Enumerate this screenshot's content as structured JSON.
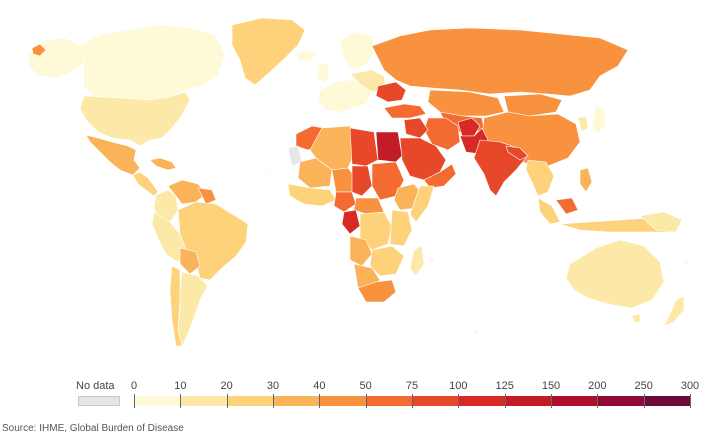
{
  "legend": {
    "no_data_label": "No data",
    "no_data_color": "#e6e6e6",
    "bins": [
      {
        "from": "0",
        "to": "10",
        "color": "#fef9d6"
      },
      {
        "from": "10",
        "to": "20",
        "color": "#fde9a7"
      },
      {
        "from": "20",
        "to": "30",
        "color": "#fdd27a"
      },
      {
        "from": "30",
        "to": "40",
        "color": "#fbb35a"
      },
      {
        "from": "40",
        "to": "50",
        "color": "#f8923f"
      },
      {
        "from": "50",
        "to": "75",
        "color": "#f36b31"
      },
      {
        "from": "75",
        "to": "100",
        "color": "#e8482a"
      },
      {
        "from": "100",
        "to": "125",
        "color": "#d82a24"
      },
      {
        "from": "125",
        "to": "150",
        "color": "#c41c26"
      },
      {
        "from": "150",
        "to": "200",
        "color": "#ad0f2d"
      },
      {
        "from": "200",
        "to": "250",
        "color": "#900a36"
      },
      {
        "from": "250",
        "to": "300",
        "color": "#6e0a3a"
      }
    ],
    "tick_labels": [
      "0",
      "10",
      "20",
      "30",
      "40",
      "50",
      "75",
      "100",
      "125",
      "150",
      "200",
      "250",
      "300"
    ]
  },
  "source": "Source: IHME, Global Burden of Disease"
}
